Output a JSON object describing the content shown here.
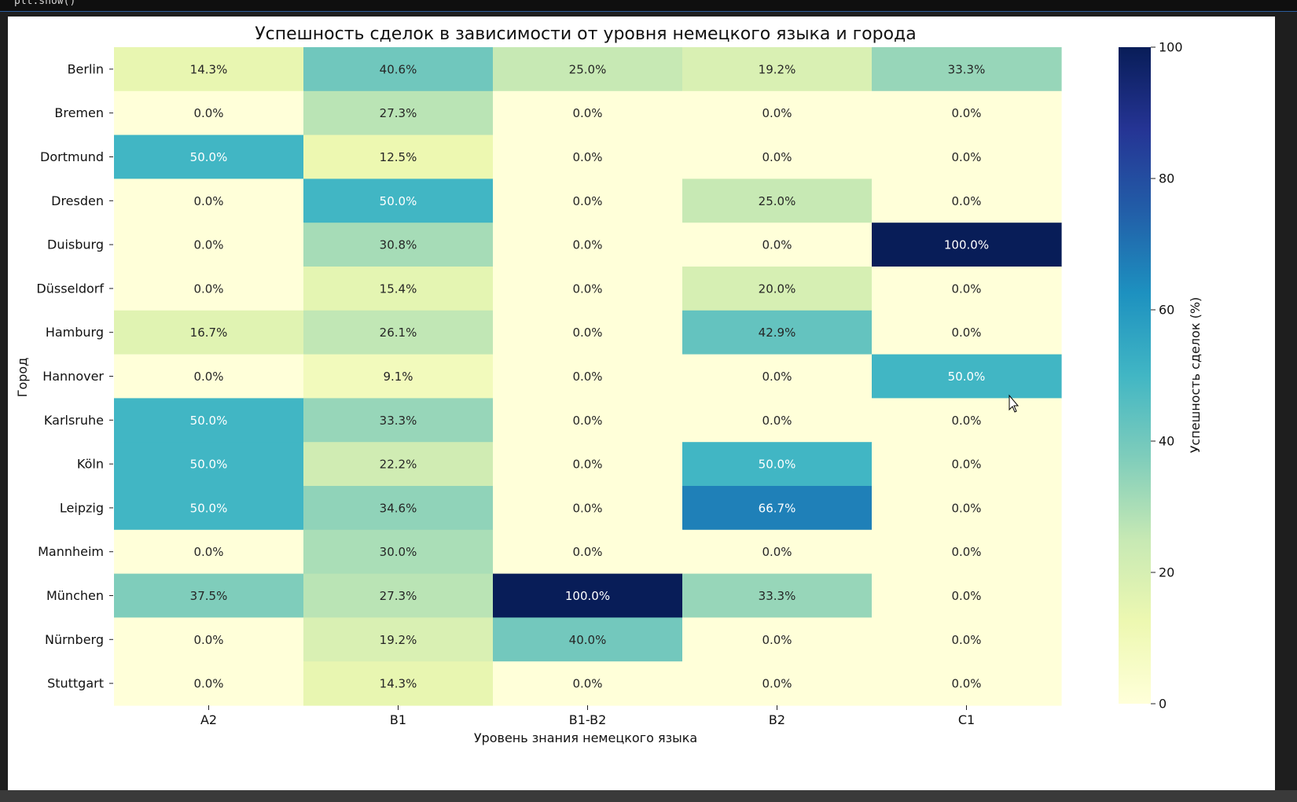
{
  "code_line": "plt.show()",
  "chart_data": {
    "type": "heatmap",
    "title": "Успешность сделок в зависимости от уровня немецкого языка и города",
    "xlabel": "Уровень знания немецкого языка",
    "ylabel": "Город",
    "x_categories": [
      "A2",
      "B1",
      "B1-B2",
      "B2",
      "C1"
    ],
    "y_categories": [
      "Berlin",
      "Bremen",
      "Dortmund",
      "Dresden",
      "Duisburg",
      "Düsseldorf",
      "Hamburg",
      "Hannover",
      "Karlsruhe",
      "Köln",
      "Leipzig",
      "Mannheim",
      "München",
      "Nürnberg",
      "Stuttgart"
    ],
    "values": [
      [
        14.3,
        40.6,
        25.0,
        19.2,
        33.3
      ],
      [
        0.0,
        27.3,
        0.0,
        0.0,
        0.0
      ],
      [
        50.0,
        12.5,
        0.0,
        0.0,
        0.0
      ],
      [
        0.0,
        50.0,
        0.0,
        25.0,
        0.0
      ],
      [
        0.0,
        30.8,
        0.0,
        0.0,
        100.0
      ],
      [
        0.0,
        15.4,
        0.0,
        20.0,
        0.0
      ],
      [
        16.7,
        26.1,
        0.0,
        42.9,
        0.0
      ],
      [
        0.0,
        9.1,
        0.0,
        0.0,
        50.0
      ],
      [
        50.0,
        33.3,
        0.0,
        0.0,
        0.0
      ],
      [
        50.0,
        22.2,
        0.0,
        50.0,
        0.0
      ],
      [
        50.0,
        34.6,
        0.0,
        66.7,
        0.0
      ],
      [
        0.0,
        30.0,
        0.0,
        0.0,
        0.0
      ],
      [
        37.5,
        27.3,
        100.0,
        33.3,
        0.0
      ],
      [
        0.0,
        19.2,
        40.0,
        0.0,
        0.0
      ],
      [
        0.0,
        14.3,
        0.0,
        0.0,
        0.0
      ]
    ],
    "value_format": "%",
    "colormap": "YlGnBu",
    "vmin": 0,
    "vmax": 100,
    "colorbar": {
      "label": "Успешность сделок (%)",
      "ticks": [
        0,
        20,
        40,
        60,
        80,
        100
      ]
    }
  }
}
